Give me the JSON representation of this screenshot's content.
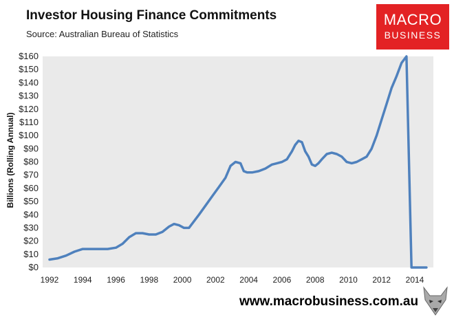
{
  "header": {
    "title": "Investor Housing Finance Commitments",
    "source": "Source: Australian Bureau of Statistics"
  },
  "logo": {
    "line1": "MACRO",
    "line2": "BUSINESS",
    "color": "#e32224"
  },
  "footer": {
    "url": "www.macrobusiness.com.au",
    "mascot_icon": "wolf-mascot-icon"
  },
  "colors": {
    "plot_bg": "#eaeaea",
    "line": "#4f81bd"
  },
  "chart_data": {
    "type": "line",
    "title": "Investor Housing Finance Commitments",
    "xlabel": "",
    "ylabel": "Billions (Rolling Annual)",
    "xlim": [
      1992,
      2015
    ],
    "ylim": [
      0,
      160
    ],
    "x_ticks": [
      "1992",
      "1994",
      "1996",
      "1998",
      "2000",
      "2002",
      "2004",
      "2006",
      "2008",
      "2010",
      "2012",
      "2014"
    ],
    "x_tick_values": [
      1992,
      1994,
      1996,
      1998,
      2000,
      2002,
      2004,
      2006,
      2008,
      2010,
      2012,
      2014
    ],
    "y_ticks": [
      "$0",
      "$10",
      "$20",
      "$30",
      "$40",
      "$50",
      "$60",
      "$70",
      "$80",
      "$90",
      "$100",
      "$110",
      "$120",
      "$130",
      "$140",
      "$150",
      "$160"
    ],
    "y_tick_values": [
      0,
      10,
      20,
      30,
      40,
      50,
      60,
      70,
      80,
      90,
      100,
      110,
      120,
      130,
      140,
      150,
      160
    ],
    "grid": false,
    "legend": "none",
    "series": [
      {
        "x": [
          1992.0,
          1992.5,
          1993.0,
          1993.5,
          1994.0,
          1994.5,
          1995.0,
          1995.5,
          1996.0,
          1996.4,
          1996.8,
          1997.2,
          1997.6,
          1998.0,
          1998.4,
          1998.8,
          1999.2,
          1999.5,
          1999.8,
          2000.1,
          2000.4,
          2000.7,
          2001.0,
          2001.4,
          2001.8,
          2002.2,
          2002.6,
          2002.9,
          2003.2,
          2003.5,
          2003.7,
          2003.9,
          2004.2,
          2004.6,
          2005.0,
          2005.4,
          2005.7,
          2006.0,
          2006.3,
          2006.6,
          2006.8,
          2007.0,
          2007.2,
          2007.4,
          2007.6,
          2007.8,
          2008.0,
          2008.2,
          2008.4,
          2008.7,
          2009.0,
          2009.3,
          2009.6,
          2009.9,
          2010.2,
          2010.5,
          2010.8,
          2011.1,
          2011.4,
          2011.7,
          2012.0,
          2012.3,
          2012.6,
          2012.9,
          2013.2,
          2013.5,
          2013.8,
          2014.1,
          2014.4,
          2014.7,
          2014.9
        ],
        "y": [
          6,
          7,
          9,
          12,
          14,
          14,
          14,
          14,
          15,
          18,
          23,
          26,
          26,
          25,
          25,
          27,
          31,
          33,
          32,
          30,
          30,
          35,
          40,
          47,
          54,
          61,
          68,
          77,
          80,
          79,
          73,
          72,
          72,
          73,
          75,
          78,
          79,
          80,
          82,
          88,
          93,
          96,
          95,
          88,
          84,
          78,
          77,
          79,
          82,
          86,
          87,
          86,
          84,
          80,
          79,
          80,
          82,
          84,
          90,
          100,
          112,
          124,
          136,
          145,
          155,
          160,
          0,
          0,
          0,
          0,
          0
        ]
      }
    ]
  }
}
